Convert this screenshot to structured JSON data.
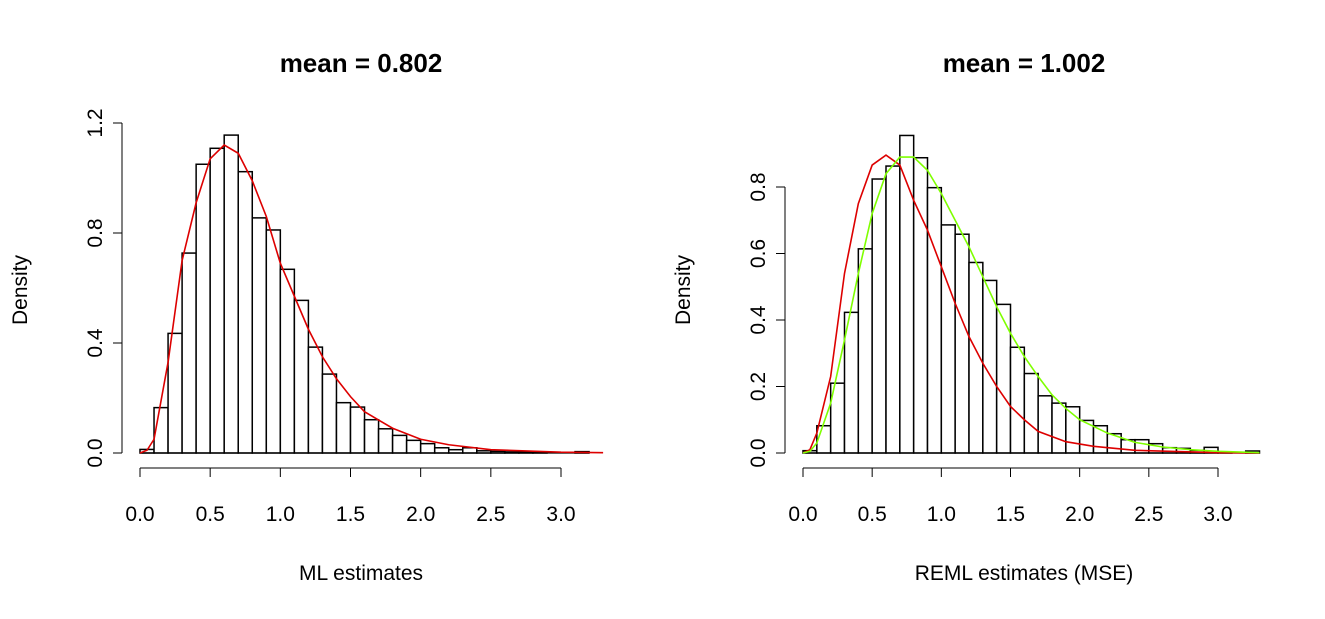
{
  "chart_data": [
    {
      "type": "bar",
      "subtype": "histogram",
      "title": "mean = 0.802",
      "xlabel": "ML estimates",
      "ylabel": "Density",
      "xlim": [
        0,
        3.3
      ],
      "ylim": [
        0,
        1.2
      ],
      "xticks": [
        "0.0",
        "0.5",
        "1.0",
        "1.5",
        "2.0",
        "2.5",
        "3.0"
      ],
      "yticks": [
        "0.0",
        "0.4",
        "0.8",
        "1.2"
      ],
      "grid": false,
      "bin_width": 0.1,
      "bin_starts": [
        0.0,
        0.1,
        0.2,
        0.3,
        0.4,
        0.5,
        0.6,
        0.7,
        0.8,
        0.9,
        1.0,
        1.1,
        1.2,
        1.3,
        1.4,
        1.5,
        1.6,
        1.7,
        1.8,
        1.9,
        2.0,
        2.1,
        2.2,
        2.3,
        2.4,
        2.5,
        2.6,
        2.7,
        2.8,
        2.9,
        3.0,
        3.1
      ],
      "values": [
        0.013,
        0.165,
        0.435,
        0.727,
        1.05,
        1.108,
        1.156,
        1.023,
        0.855,
        0.811,
        0.668,
        0.555,
        0.385,
        0.287,
        0.183,
        0.167,
        0.121,
        0.088,
        0.064,
        0.046,
        0.034,
        0.019,
        0.012,
        0.019,
        0.008,
        0.006,
        0.004,
        0.004,
        0.003,
        0,
        0,
        0.005
      ],
      "bar_color": "#ffffff",
      "curves": [
        {
          "color": "#dd0000",
          "x": [
            0,
            0.05,
            0.1,
            0.2,
            0.3,
            0.4,
            0.5,
            0.6,
            0.7,
            0.8,
            0.9,
            1.0,
            1.1,
            1.2,
            1.3,
            1.4,
            1.5,
            1.6,
            1.8,
            2.0,
            2.2,
            2.5,
            3.0,
            3.3
          ],
          "y": [
            0,
            0.01,
            0.05,
            0.33,
            0.7,
            0.91,
            1.07,
            1.12,
            1.09,
            0.99,
            0.86,
            0.69,
            0.57,
            0.45,
            0.35,
            0.27,
            0.205,
            0.15,
            0.09,
            0.05,
            0.03,
            0.012,
            0.003,
            0.001
          ]
        }
      ]
    },
    {
      "type": "bar",
      "subtype": "histogram",
      "title": "mean = 1.002",
      "xlabel": "REML estimates (MSE)",
      "ylabel": "Density",
      "xlim": [
        0,
        3.3
      ],
      "ylim": [
        0,
        0.8
      ],
      "xticks": [
        "0.0",
        "0.5",
        "1.0",
        "1.5",
        "2.0",
        "2.5",
        "3.0"
      ],
      "yticks": [
        "0.0",
        "0.2",
        "0.4",
        "0.6",
        "0.8"
      ],
      "grid": false,
      "bin_width": 0.1,
      "bin_starts": [
        0.0,
        0.1,
        0.2,
        0.3,
        0.4,
        0.5,
        0.6,
        0.7,
        0.8,
        0.9,
        1.0,
        1.1,
        1.2,
        1.3,
        1.4,
        1.5,
        1.6,
        1.7,
        1.8,
        1.9,
        2.0,
        2.1,
        2.2,
        2.3,
        2.4,
        2.5,
        2.6,
        2.7,
        2.8,
        2.9,
        3.0,
        3.1,
        3.2
      ],
      "values": [
        0.007,
        0.082,
        0.21,
        0.423,
        0.614,
        0.824,
        0.863,
        0.955,
        0.888,
        0.798,
        0.686,
        0.658,
        0.573,
        0.519,
        0.447,
        0.318,
        0.239,
        0.172,
        0.15,
        0.139,
        0.098,
        0.082,
        0.058,
        0.04,
        0.04,
        0.028,
        0.016,
        0.014,
        0.008,
        0.017,
        0.002,
        0,
        0.006
      ],
      "bar_color": "#ffffff",
      "curves": [
        {
          "color": "#dd0000",
          "x": [
            0,
            0.05,
            0.1,
            0.2,
            0.3,
            0.4,
            0.5,
            0.6,
            0.7,
            0.8,
            0.9,
            1.0,
            1.1,
            1.2,
            1.3,
            1.4,
            1.5,
            1.6,
            1.7,
            1.9,
            2.1,
            2.4,
            3.0,
            3.3
          ],
          "y": [
            0,
            0.01,
            0.06,
            0.23,
            0.54,
            0.75,
            0.866,
            0.896,
            0.866,
            0.76,
            0.67,
            0.56,
            0.45,
            0.35,
            0.27,
            0.2,
            0.14,
            0.1,
            0.065,
            0.034,
            0.02,
            0.008,
            0.001,
            0
          ]
        },
        {
          "color": "#7fff00",
          "x": [
            0,
            0.05,
            0.1,
            0.2,
            0.3,
            0.4,
            0.5,
            0.6,
            0.7,
            0.8,
            0.9,
            1.0,
            1.1,
            1.2,
            1.3,
            1.4,
            1.5,
            1.6,
            1.7,
            1.8,
            1.9,
            2.0,
            2.2,
            2.4,
            2.6,
            2.8,
            3.0,
            3.3
          ],
          "y": [
            0,
            0.005,
            0.03,
            0.15,
            0.34,
            0.54,
            0.72,
            0.84,
            0.89,
            0.89,
            0.85,
            0.78,
            0.7,
            0.62,
            0.53,
            0.44,
            0.36,
            0.29,
            0.23,
            0.175,
            0.134,
            0.1,
            0.06,
            0.032,
            0.018,
            0.01,
            0.005,
            0.001
          ]
        }
      ]
    }
  ]
}
